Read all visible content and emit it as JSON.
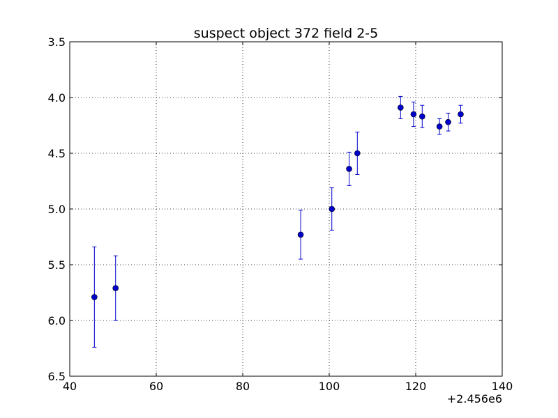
{
  "chart_data": {
    "type": "scatter",
    "title": "suspect object 372 field 2-5",
    "xlabel": "",
    "ylabel": "",
    "x_offset_label": "+2.456e6",
    "xlim": [
      40,
      140
    ],
    "ylim": [
      6.5,
      3.5
    ],
    "y_inverted": true,
    "grid": true,
    "grid_style": "dotted",
    "x_ticks": [
      40,
      60,
      80,
      100,
      120,
      140
    ],
    "x_tick_labels": [
      "40",
      "60",
      "80",
      "100",
      "120",
      "140"
    ],
    "y_ticks": [
      3.5,
      4.0,
      4.5,
      5.0,
      5.5,
      6.0,
      6.5
    ],
    "y_tick_labels": [
      "3.5",
      "4.0",
      "4.5",
      "5.0",
      "5.5",
      "6.0",
      "6.5"
    ],
    "series": [
      {
        "color": "#0000cc",
        "marker": "circle",
        "points": [
          {
            "x": 45.7,
            "y": 5.79,
            "yerr": 0.45
          },
          {
            "x": 50.6,
            "y": 5.71,
            "yerr": 0.29
          },
          {
            "x": 93.4,
            "y": 5.23,
            "yerr": 0.22
          },
          {
            "x": 100.6,
            "y": 5.0,
            "yerr": 0.19
          },
          {
            "x": 104.6,
            "y": 4.64,
            "yerr": 0.15
          },
          {
            "x": 106.5,
            "y": 4.5,
            "yerr": 0.19
          },
          {
            "x": 116.5,
            "y": 4.09,
            "yerr": 0.1
          },
          {
            "x": 119.5,
            "y": 4.15,
            "yerr": 0.11
          },
          {
            "x": 121.5,
            "y": 4.17,
            "yerr": 0.1
          },
          {
            "x": 125.5,
            "y": 4.26,
            "yerr": 0.07
          },
          {
            "x": 127.5,
            "y": 4.22,
            "yerr": 0.08
          },
          {
            "x": 130.4,
            "y": 4.15,
            "yerr": 0.08
          }
        ]
      }
    ]
  }
}
